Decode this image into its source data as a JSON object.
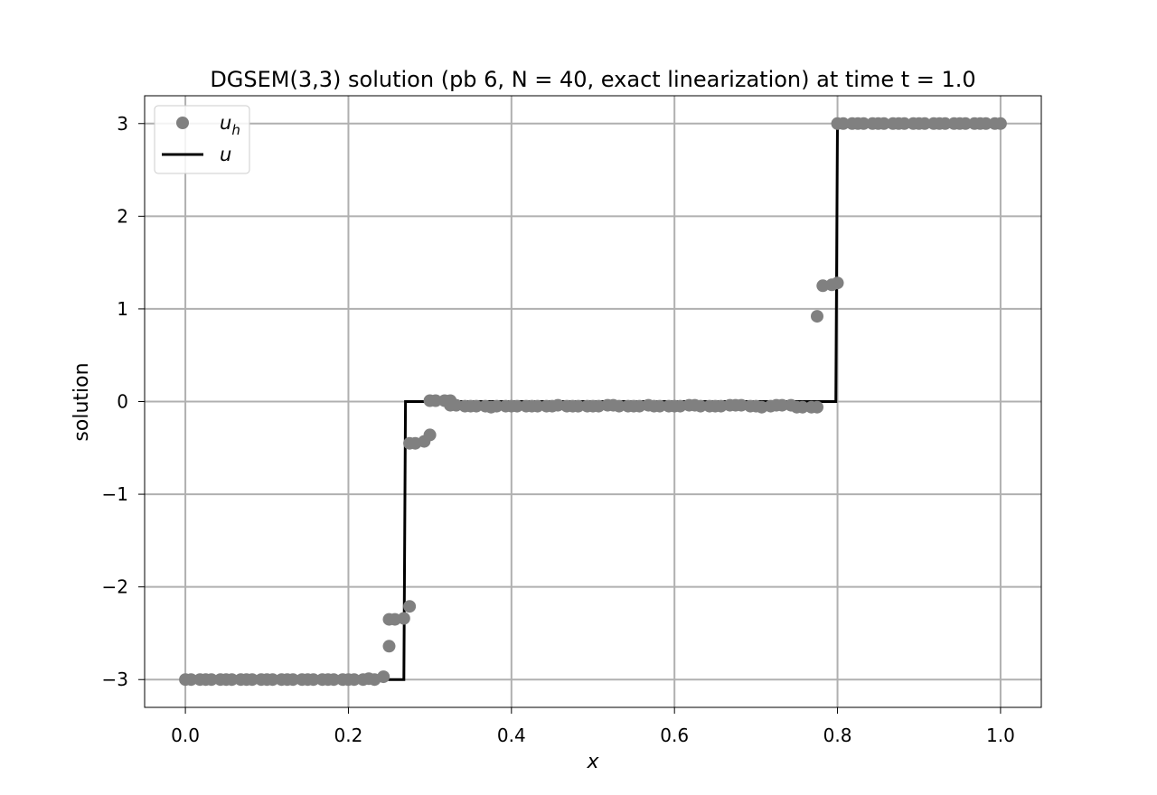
{
  "chart_data": {
    "type": "line",
    "title": "DGSEM(3,3) solution (pb 6, N = 40, exact linearization) at time t = 1.0",
    "xlabel": "x",
    "ylabel": "solution",
    "xlim": [
      -0.05,
      1.05
    ],
    "ylim": [
      -3.3,
      3.3
    ],
    "xticks": [
      0.0,
      0.2,
      0.4,
      0.6,
      0.8,
      1.0
    ],
    "xtick_labels": [
      "0.0",
      "0.2",
      "0.4",
      "0.6",
      "0.8",
      "1.0"
    ],
    "yticks": [
      -3,
      -2,
      -1,
      0,
      1,
      2,
      3
    ],
    "ytick_labels": [
      "−3",
      "−2",
      "−1",
      "0",
      "1",
      "2",
      "3"
    ],
    "grid": true,
    "legend": {
      "position": "top-left",
      "entries": [
        "u_h",
        "u"
      ]
    },
    "series": [
      {
        "name": "u_h",
        "kind": "scatter",
        "color": "#808080",
        "points": [
          [
            0.0,
            -3.0
          ],
          [
            0.007,
            -3.0
          ],
          [
            0.018,
            -3.0
          ],
          [
            0.025,
            -3.0
          ],
          [
            0.032,
            -3.0
          ],
          [
            0.043,
            -3.0
          ],
          [
            0.05,
            -3.0
          ],
          [
            0.057,
            -3.0
          ],
          [
            0.068,
            -3.0
          ],
          [
            0.075,
            -3.0
          ],
          [
            0.082,
            -3.0
          ],
          [
            0.093,
            -3.0
          ],
          [
            0.1,
            -3.0
          ],
          [
            0.107,
            -3.0
          ],
          [
            0.118,
            -3.0
          ],
          [
            0.125,
            -3.0
          ],
          [
            0.132,
            -3.0
          ],
          [
            0.143,
            -3.0
          ],
          [
            0.15,
            -3.0
          ],
          [
            0.157,
            -3.0
          ],
          [
            0.168,
            -3.0
          ],
          [
            0.175,
            -3.0
          ],
          [
            0.182,
            -3.0
          ],
          [
            0.193,
            -3.0
          ],
          [
            0.2,
            -3.0
          ],
          [
            0.207,
            -3.0
          ],
          [
            0.218,
            -3.0
          ],
          [
            0.225,
            -2.99
          ],
          [
            0.232,
            -3.0
          ],
          [
            0.243,
            -2.97
          ],
          [
            0.25,
            -2.64
          ],
          [
            0.25,
            -2.35
          ],
          [
            0.257,
            -2.35
          ],
          [
            0.268,
            -2.34
          ],
          [
            0.275,
            -2.21
          ],
          [
            0.275,
            -0.45
          ],
          [
            0.282,
            -0.45
          ],
          [
            0.293,
            -0.43
          ],
          [
            0.3,
            -0.36
          ],
          [
            0.3,
            0.01
          ],
          [
            0.307,
            0.01
          ],
          [
            0.318,
            0.01
          ],
          [
            0.325,
            0.01
          ],
          [
            0.325,
            -0.04
          ],
          [
            0.332,
            -0.04
          ],
          [
            0.343,
            -0.05
          ],
          [
            0.35,
            -0.05
          ],
          [
            0.357,
            -0.05
          ],
          [
            0.368,
            -0.05
          ],
          [
            0.375,
            -0.06
          ],
          [
            0.382,
            -0.05
          ],
          [
            0.393,
            -0.05
          ],
          [
            0.4,
            -0.05
          ],
          [
            0.407,
            -0.05
          ],
          [
            0.418,
            -0.05
          ],
          [
            0.425,
            -0.05
          ],
          [
            0.432,
            -0.05
          ],
          [
            0.443,
            -0.05
          ],
          [
            0.45,
            -0.05
          ],
          [
            0.457,
            -0.04
          ],
          [
            0.468,
            -0.05
          ],
          [
            0.475,
            -0.05
          ],
          [
            0.482,
            -0.05
          ],
          [
            0.493,
            -0.05
          ],
          [
            0.5,
            -0.05
          ],
          [
            0.507,
            -0.05
          ],
          [
            0.518,
            -0.04
          ],
          [
            0.525,
            -0.04
          ],
          [
            0.532,
            -0.05
          ],
          [
            0.543,
            -0.05
          ],
          [
            0.55,
            -0.05
          ],
          [
            0.557,
            -0.05
          ],
          [
            0.568,
            -0.04
          ],
          [
            0.575,
            -0.05
          ],
          [
            0.582,
            -0.05
          ],
          [
            0.593,
            -0.05
          ],
          [
            0.6,
            -0.05
          ],
          [
            0.607,
            -0.05
          ],
          [
            0.618,
            -0.04
          ],
          [
            0.625,
            -0.04
          ],
          [
            0.632,
            -0.05
          ],
          [
            0.643,
            -0.05
          ],
          [
            0.65,
            -0.05
          ],
          [
            0.657,
            -0.05
          ],
          [
            0.668,
            -0.04
          ],
          [
            0.675,
            -0.04
          ],
          [
            0.682,
            -0.04
          ],
          [
            0.693,
            -0.05
          ],
          [
            0.7,
            -0.05
          ],
          [
            0.707,
            -0.06
          ],
          [
            0.718,
            -0.05
          ],
          [
            0.725,
            -0.04
          ],
          [
            0.732,
            -0.04
          ],
          [
            0.743,
            -0.04
          ],
          [
            0.75,
            -0.06
          ],
          [
            0.757,
            -0.06
          ],
          [
            0.768,
            -0.06
          ],
          [
            0.775,
            -0.06
          ],
          [
            0.775,
            0.92
          ],
          [
            0.782,
            1.25
          ],
          [
            0.793,
            1.26
          ],
          [
            0.8,
            1.28
          ],
          [
            0.8,
            3.0
          ],
          [
            0.807,
            3.0
          ],
          [
            0.818,
            3.0
          ],
          [
            0.825,
            3.0
          ],
          [
            0.832,
            3.0
          ],
          [
            0.843,
            3.0
          ],
          [
            0.85,
            3.0
          ],
          [
            0.857,
            3.0
          ],
          [
            0.868,
            3.0
          ],
          [
            0.875,
            3.0
          ],
          [
            0.882,
            3.0
          ],
          [
            0.893,
            3.0
          ],
          [
            0.9,
            3.0
          ],
          [
            0.907,
            3.0
          ],
          [
            0.918,
            3.0
          ],
          [
            0.925,
            3.0
          ],
          [
            0.932,
            3.0
          ],
          [
            0.943,
            3.0
          ],
          [
            0.95,
            3.0
          ],
          [
            0.957,
            3.0
          ],
          [
            0.968,
            3.0
          ],
          [
            0.975,
            3.0
          ],
          [
            0.982,
            3.0
          ],
          [
            0.993,
            3.0
          ],
          [
            1.0,
            3.0
          ]
        ]
      },
      {
        "name": "u",
        "kind": "line",
        "color": "#000000",
        "points": [
          [
            0.0,
            -3.0
          ],
          [
            0.268,
            -3.0
          ],
          [
            0.27,
            0.0
          ],
          [
            0.798,
            0.0
          ],
          [
            0.8,
            3.0
          ],
          [
            1.0,
            3.0
          ]
        ]
      }
    ]
  }
}
